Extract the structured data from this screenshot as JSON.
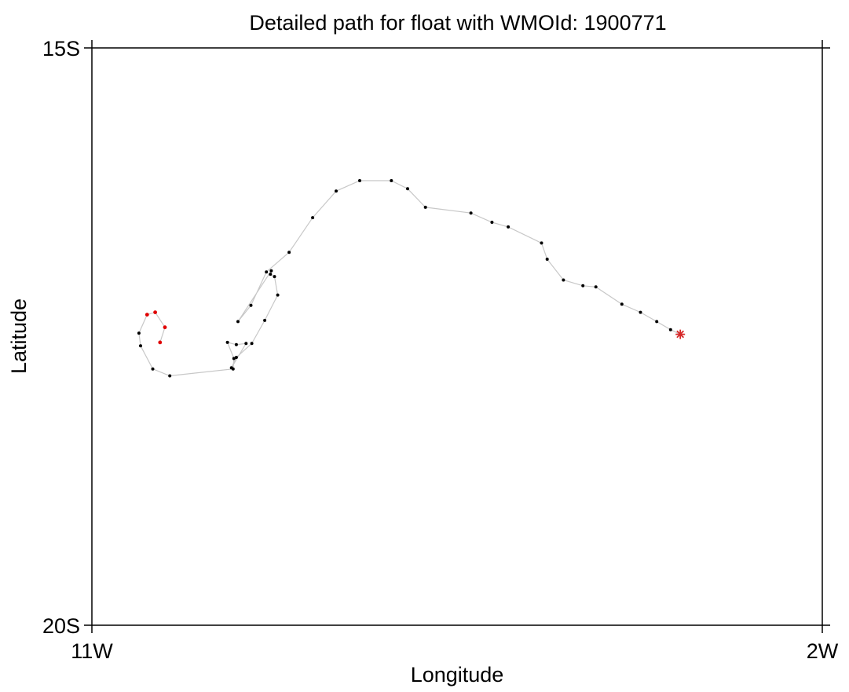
{
  "chart_data": {
    "type": "scatter",
    "title": "Detailed path for float with WMOId: 1900771",
    "xlabel": "Longitude",
    "ylabel": "Latitude",
    "xlim": [
      -11,
      -2
    ],
    "ylim": [
      -20,
      -15
    ],
    "x_ticks": [
      {
        "value": -11,
        "label": "11W"
      },
      {
        "value": -2,
        "label": "2W"
      }
    ],
    "y_ticks": [
      {
        "value": -15,
        "label": "15S"
      },
      {
        "value": -20,
        "label": "20S"
      }
    ],
    "grid": false,
    "colors": {
      "path_line": "#c8c8c8",
      "point": "#000000",
      "recent_point": "#e00000",
      "start_marker": "#d62728"
    },
    "start_marker": {
      "lon": -3.75,
      "lat": -17.48
    },
    "path": [
      [
        -3.75,
        -17.48
      ],
      [
        -3.87,
        -17.44
      ],
      [
        -4.04,
        -17.37
      ],
      [
        -4.24,
        -17.29
      ],
      [
        -4.47,
        -17.22
      ],
      [
        -4.79,
        -17.07
      ],
      [
        -4.95,
        -17.06
      ],
      [
        -5.19,
        -17.01
      ],
      [
        -5.39,
        -16.83
      ],
      [
        -5.46,
        -16.69
      ],
      [
        -5.87,
        -16.55
      ],
      [
        -6.07,
        -16.51
      ],
      [
        -6.33,
        -16.43
      ],
      [
        -6.89,
        -16.38
      ],
      [
        -7.11,
        -16.22
      ],
      [
        -7.31,
        -16.15
      ],
      [
        -7.7,
        -16.15
      ],
      [
        -7.99,
        -16.24
      ],
      [
        -8.28,
        -16.47
      ],
      [
        -8.57,
        -16.77
      ],
      [
        -8.85,
        -16.94
      ],
      [
        -9.04,
        -17.23
      ],
      [
        -9.2,
        -17.37
      ],
      [
        -8.79,
        -16.93
      ],
      [
        -8.8,
        -16.96
      ],
      [
        -8.75,
        -16.98
      ],
      [
        -8.71,
        -17.14
      ],
      [
        -8.87,
        -17.36
      ],
      [
        -9.03,
        -17.56
      ],
      [
        -9.22,
        -17.68
      ],
      [
        -9.28,
        -17.77
      ],
      [
        -9.1,
        -17.56
      ],
      [
        -9.22,
        -17.57
      ],
      [
        -9.33,
        -17.55
      ],
      [
        -9.25,
        -17.69
      ],
      [
        -9.26,
        -17.78
      ],
      [
        -10.04,
        -17.84
      ],
      [
        -10.25,
        -17.78
      ],
      [
        -10.4,
        -17.58
      ],
      [
        -10.42,
        -17.47
      ]
    ],
    "recent_path": [
      [
        -10.42,
        -17.47
      ],
      [
        -10.32,
        -17.31
      ],
      [
        -10.22,
        -17.29
      ],
      [
        -10.1,
        -17.42
      ],
      [
        -10.16,
        -17.55
      ]
    ]
  }
}
